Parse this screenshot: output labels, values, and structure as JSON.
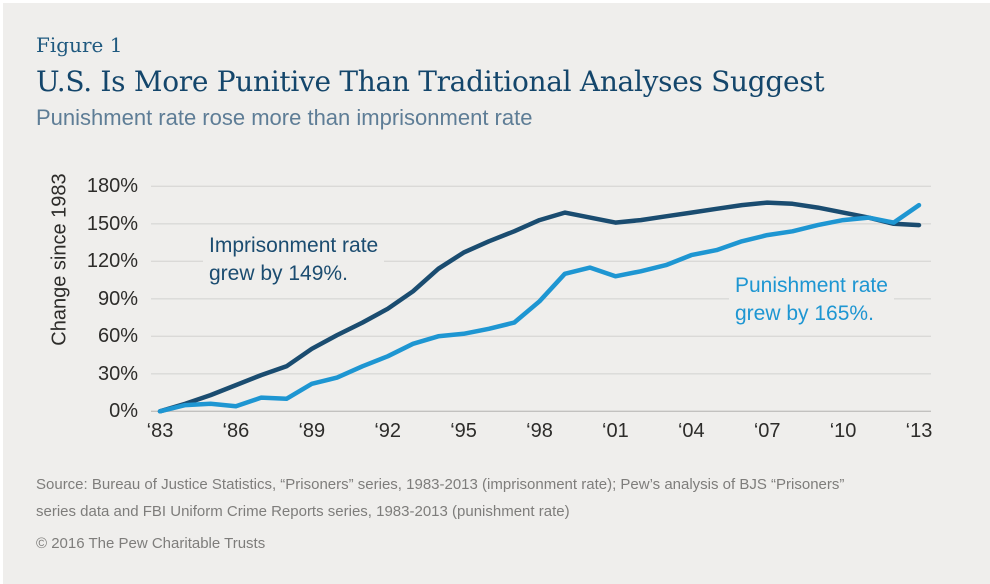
{
  "figure_label": "Figure 1",
  "title": "U.S. Is More Punitive Than Traditional Analyses Suggest",
  "subtitle": "Punishment rate rose more than imprisonment rate",
  "y_axis_title": "Change since 1983",
  "annotations": {
    "imprisonment": {
      "line1": "Imprisonment rate",
      "line2": "grew by 149%."
    },
    "punishment": {
      "line1": "Punishment rate",
      "line2": "grew by 165%."
    }
  },
  "footer": {
    "source_line1": "Source: Bureau of Justice Statistics, “Prisoners” series, 1983-2013 (imprisonment rate); Pew’s analysis of BJS “Prisoners”",
    "source_line2": "series data and FBI Uniform Crime Reports series, 1983-2013 (punishment rate)",
    "copyright": "© 2016 The Pew Charitable Trusts"
  },
  "colors": {
    "background": "#efeeec",
    "title_navy": "#14466b",
    "subtitle_blue_gray": "#5e7d96",
    "imprisonment_line": "#1a4c70",
    "punishment_line": "#1e96d2",
    "gridline": "#dad9d7",
    "axis_line": "#c2c1bf",
    "tick_text": "#2d2c2a",
    "source_gray": "#7e7d7b"
  },
  "chart_data": {
    "type": "line",
    "title": "U.S. Is More Punitive Than Traditional Analyses Suggest",
    "xlabel": "",
    "ylabel": "Change since 1983",
    "ylim": [
      0,
      180
    ],
    "grid": true,
    "legend_position": "inline-annotations",
    "x": [
      1983,
      1984,
      1985,
      1986,
      1987,
      1988,
      1989,
      1990,
      1991,
      1992,
      1993,
      1994,
      1995,
      1996,
      1997,
      1998,
      1999,
      2000,
      2001,
      2002,
      2003,
      2004,
      2005,
      2006,
      2007,
      2008,
      2009,
      2010,
      2011,
      2012,
      2013
    ],
    "x_tick_labels": [
      "‘83",
      "‘86",
      "‘89",
      "‘92",
      "‘95",
      "‘98",
      "‘01",
      "‘04",
      "‘07",
      "‘10",
      "‘13"
    ],
    "y_ticks": [
      "0%",
      "30%",
      "60%",
      "90%",
      "120%",
      "150%",
      "180%"
    ],
    "series": [
      {
        "name": "Imprisonment rate",
        "color": "#1a4c70",
        "values": [
          0,
          6,
          13,
          21,
          29,
          36,
          50,
          61,
          71,
          82,
          96,
          114,
          127,
          136,
          144,
          153,
          159,
          155,
          151,
          153,
          156,
          159,
          162,
          165,
          167,
          166,
          163,
          159,
          155,
          150,
          149
        ]
      },
      {
        "name": "Punishment rate",
        "color": "#1e96d2",
        "values": [
          0,
          5,
          6,
          4,
          11,
          10,
          22,
          27,
          36,
          44,
          54,
          60,
          62,
          66,
          71,
          88,
          110,
          115,
          108,
          112,
          117,
          125,
          129,
          136,
          141,
          144,
          149,
          153,
          155,
          151,
          165
        ]
      }
    ]
  }
}
